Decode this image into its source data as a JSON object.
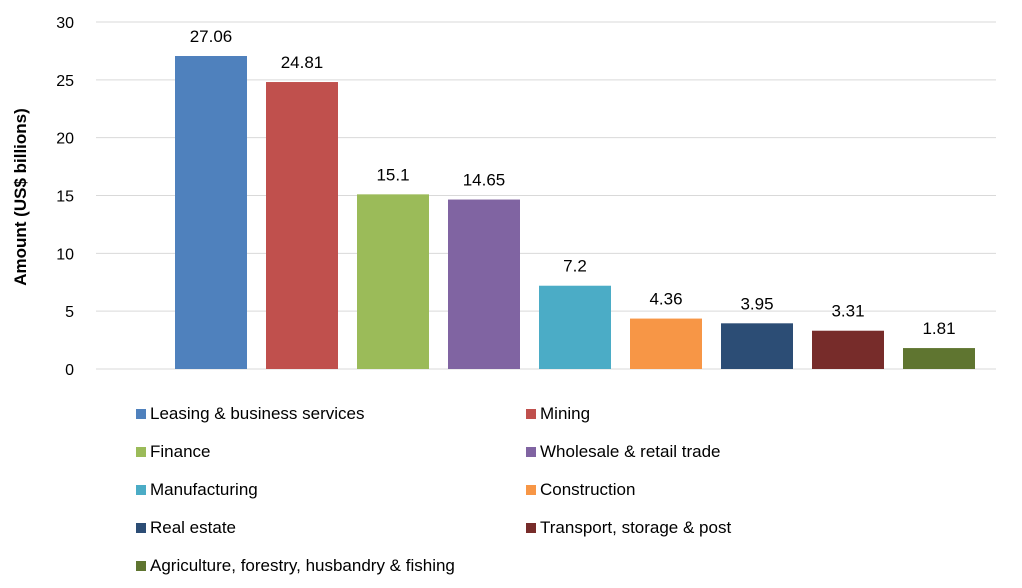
{
  "chart_data": {
    "type": "bar",
    "title": "",
    "xlabel": "",
    "ylabel": "Amount (US$ billions)",
    "ylim": [
      0,
      30
    ],
    "yticks": [
      0,
      5,
      10,
      15,
      20,
      25,
      30
    ],
    "grid": true,
    "legend_position": "bottom",
    "categories": [
      "Leasing & business services",
      "Mining",
      "Finance",
      "Wholesale & retail trade",
      "Manufacturing",
      "Construction",
      "Real estate",
      "Transport, storage & post",
      "Agriculture, forestry, husbandry & fishing"
    ],
    "values": [
      27.06,
      24.81,
      15.1,
      14.65,
      7.2,
      4.36,
      3.95,
      3.31,
      1.81
    ],
    "data_labels": [
      "27.06",
      "24.81",
      "15.1",
      "14.65",
      "7.2",
      "4.36",
      "3.95",
      "3.31",
      "1.81"
    ],
    "colors": [
      "#4F81BD",
      "#C0504D",
      "#9BBB59",
      "#8064A2",
      "#4BACC6",
      "#F79646",
      "#2C4D75",
      "#772C2A",
      "#5F7530"
    ]
  }
}
